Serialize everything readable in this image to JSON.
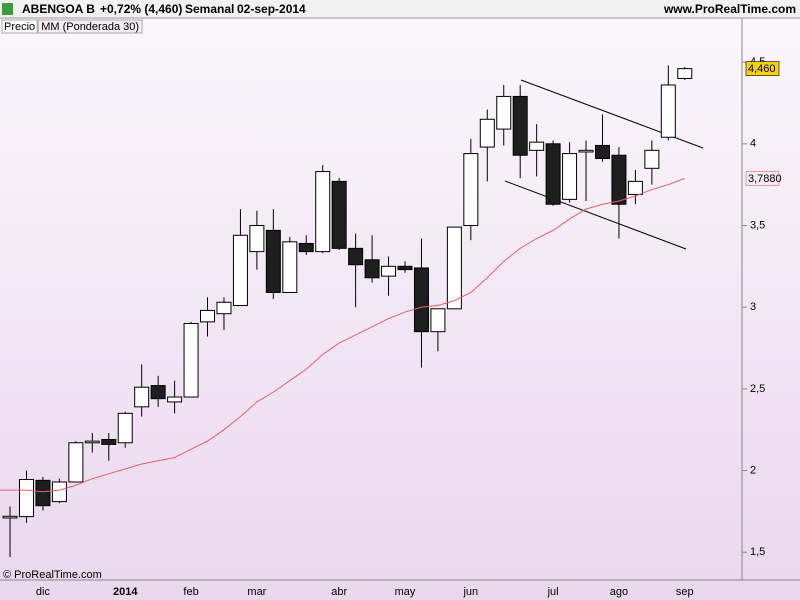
{
  "header": {
    "symbol": "ABENGOA B",
    "change": "+0,72% (4,460)",
    "period": "Semanal",
    "date": "02-sep-2014",
    "site": "www.ProRealTime.com"
  },
  "footer": "© ProRealTime.com",
  "chart_data": {
    "type": "candlestick",
    "categories": [
      null,
      null,
      "dic",
      null,
      null,
      null,
      null,
      "2014",
      null,
      null,
      null,
      "feb",
      null,
      null,
      null,
      "mar",
      null,
      null,
      null,
      null,
      "abr",
      null,
      null,
      null,
      "may",
      null,
      null,
      null,
      "jun",
      null,
      null,
      null,
      null,
      "jul",
      null,
      null,
      null,
      "ago",
      null,
      null,
      null,
      "sep"
    ],
    "series": [
      {
        "name": "Precio",
        "up_color": "#ffffff",
        "down_color": "#1e1e1e",
        "open": [
          1.71,
          1.718,
          1.94,
          1.81,
          1.93,
          2.17,
          2.19,
          2.17,
          2.39,
          2.52,
          2.42,
          2.45,
          2.91,
          2.96,
          3.01,
          3.34,
          3.47,
          3.09,
          3.39,
          3.34,
          3.77,
          3.36,
          3.29,
          3.19,
          3.25,
          3.24,
          2.85,
          2.99,
          3.5,
          3.98,
          4.09,
          4.29,
          3.96,
          4.0,
          3.66,
          3.95,
          3.99,
          3.93,
          3.69,
          3.85,
          4.04,
          4.4
        ],
        "high": [
          1.78,
          2.0,
          1.96,
          1.95,
          2.18,
          2.23,
          2.23,
          2.36,
          2.65,
          2.58,
          2.55,
          2.91,
          3.06,
          3.06,
          3.6,
          3.59,
          3.6,
          3.43,
          3.44,
          3.87,
          3.79,
          3.45,
          3.44,
          3.31,
          3.28,
          3.42,
          2.99,
          3.49,
          4.03,
          4.21,
          4.36,
          4.36,
          4.12,
          4.02,
          4.01,
          4.02,
          4.18,
          3.98,
          3.84,
          4.02,
          4.48,
          4.47
        ],
        "low": [
          1.47,
          1.68,
          1.755,
          1.8,
          1.93,
          2.11,
          2.06,
          2.14,
          2.33,
          2.39,
          2.35,
          2.45,
          2.82,
          2.86,
          3.01,
          3.23,
          3.05,
          3.09,
          3.32,
          3.33,
          3.35,
          3.0,
          3.15,
          3.07,
          3.21,
          2.63,
          2.73,
          2.99,
          3.41,
          3.77,
          3.99,
          3.79,
          3.8,
          3.62,
          3.64,
          3.65,
          3.89,
          3.42,
          3.63,
          3.75,
          4.02,
          4.39
        ],
        "close": [
          1.72,
          1.945,
          1.785,
          1.93,
          2.17,
          2.18,
          2.16,
          2.35,
          2.51,
          2.44,
          2.45,
          2.9,
          2.98,
          3.03,
          3.44,
          3.5,
          3.09,
          3.4,
          3.34,
          3.83,
          3.36,
          3.26,
          3.18,
          3.25,
          3.23,
          2.85,
          2.99,
          3.49,
          3.94,
          4.15,
          4.29,
          3.93,
          4.01,
          3.63,
          3.94,
          3.96,
          3.91,
          3.63,
          3.77,
          3.96,
          4.36,
          4.46
        ]
      },
      {
        "name": "MM (Ponderada 30)",
        "type": "line",
        "color": "#e46262",
        "values": [
          1.88,
          1.88,
          1.87,
          1.88,
          1.91,
          1.95,
          1.98,
          2.01,
          2.04,
          2.06,
          2.08,
          2.13,
          2.18,
          2.25,
          2.33,
          2.42,
          2.48,
          2.55,
          2.62,
          2.71,
          2.78,
          2.83,
          2.88,
          2.93,
          2.97,
          3.0,
          3.01,
          3.04,
          3.09,
          3.18,
          3.28,
          3.36,
          3.42,
          3.47,
          3.54,
          3.6,
          3.63,
          3.65,
          3.68,
          3.72,
          3.75,
          3.788
        ]
      }
    ],
    "price_tags": [
      {
        "value": 4.46,
        "label": "4,460",
        "fill": "#f4cf12",
        "text_color": "#000000"
      },
      {
        "value": 3.788,
        "label": "3,7880",
        "fill": "#f6ecf4",
        "text_color": "#e46262"
      }
    ],
    "ylim": [
      1.33,
      4.77
    ],
    "yticks": [
      {
        "value": 1.5,
        "label": "1,5"
      },
      {
        "value": 2,
        "label": "2"
      },
      {
        "value": 2.5,
        "label": "2,5"
      },
      {
        "value": 3,
        "label": "3"
      },
      {
        "value": 3.5,
        "label": "3,5"
      },
      {
        "value": 4,
        "label": "4"
      },
      {
        "value": 4.5,
        "label": "4,5"
      }
    ]
  }
}
